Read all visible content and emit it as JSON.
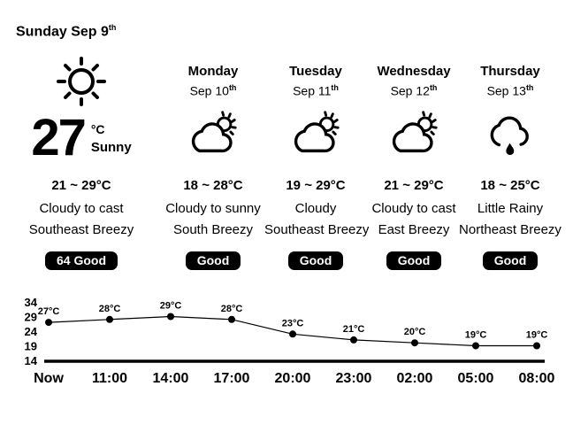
{
  "header": {
    "title": "Sunday Sep 9",
    "title_suffix": "th"
  },
  "today": {
    "current_temp": "27",
    "unit": "°C",
    "condition": "Sunny",
    "range": "21 ~ 29°C",
    "condition_line1": "Cloudy to cast",
    "condition_line2": "Southeast Breezy",
    "air_quality": "64 Good",
    "icon": "sun-icon"
  },
  "forecast": {
    "days": [
      {
        "day": "Monday",
        "date": "Sep 10",
        "date_suffix": "th",
        "range": "18 ~ 28°C",
        "condition_line1": "Cloudy to sunny",
        "condition_line2": "South Breezy",
        "air_quality": "Good",
        "icon": "cloud-sun-icon"
      },
      {
        "day": "Tuesday",
        "date": "Sep 11",
        "date_suffix": "th",
        "range": "19 ~ 29°C",
        "condition_line1": "Cloudy",
        "condition_line2": "Southeast Breezy",
        "air_quality": "Good",
        "icon": "cloud-sun-icon"
      },
      {
        "day": "Wednesday",
        "date": "Sep 12",
        "date_suffix": "th",
        "range": "21 ~ 29°C",
        "condition_line1": "Cloudy to cast",
        "condition_line2": "East Breezy",
        "air_quality": "Good",
        "icon": "cloud-sun-icon"
      },
      {
        "day": "Thursday",
        "date": "Sep 13",
        "date_suffix": "th",
        "range": "18 ~ 25°C",
        "condition_line1": "Little Rainy",
        "condition_line2": "Northeast Breezy",
        "air_quality": "Good",
        "icon": "cloud-rain-icon"
      }
    ]
  },
  "chart_data": {
    "type": "line",
    "x": [
      "Now",
      "11:00",
      "14:00",
      "17:00",
      "20:00",
      "23:00",
      "02:00",
      "05:00",
      "08:00"
    ],
    "values": [
      27,
      28,
      29,
      28,
      23,
      21,
      20,
      19,
      19
    ],
    "point_labels": [
      "27°C",
      "28°C",
      "29°C",
      "28°C",
      "23°C",
      "21°C",
      "20°C",
      "19°C",
      "19°C"
    ],
    "yticks": [
      34,
      29,
      24,
      19,
      14
    ],
    "ylim": [
      14,
      34
    ],
    "title": "",
    "xlabel": "",
    "ylabel": "",
    "grid": false,
    "legend": "none",
    "line_color": "#000000",
    "marker": "filled-circle"
  },
  "colors": {
    "background": "#ffffff",
    "text": "#000000",
    "badge_bg": "#000000",
    "badge_text": "#ffffff"
  }
}
